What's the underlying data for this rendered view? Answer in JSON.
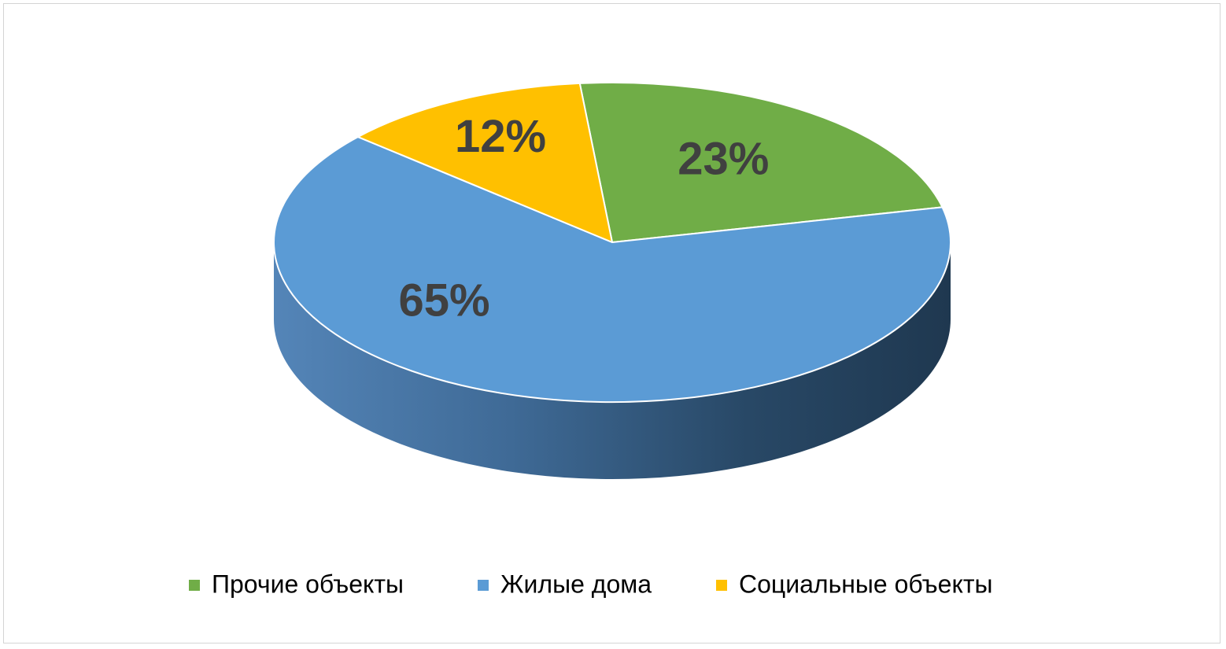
{
  "chart_data": {
    "type": "pie",
    "style": "3d",
    "title": "",
    "categories": [
      "Прочие объекты",
      "Жилые дома",
      "Социальные объекты"
    ],
    "values": [
      23,
      65,
      12
    ],
    "labels": [
      "23%",
      "65%",
      "12%"
    ],
    "colors": [
      "#70AD47",
      "#5B9BD5",
      "#FFC000"
    ],
    "legend_position": "bottom"
  }
}
